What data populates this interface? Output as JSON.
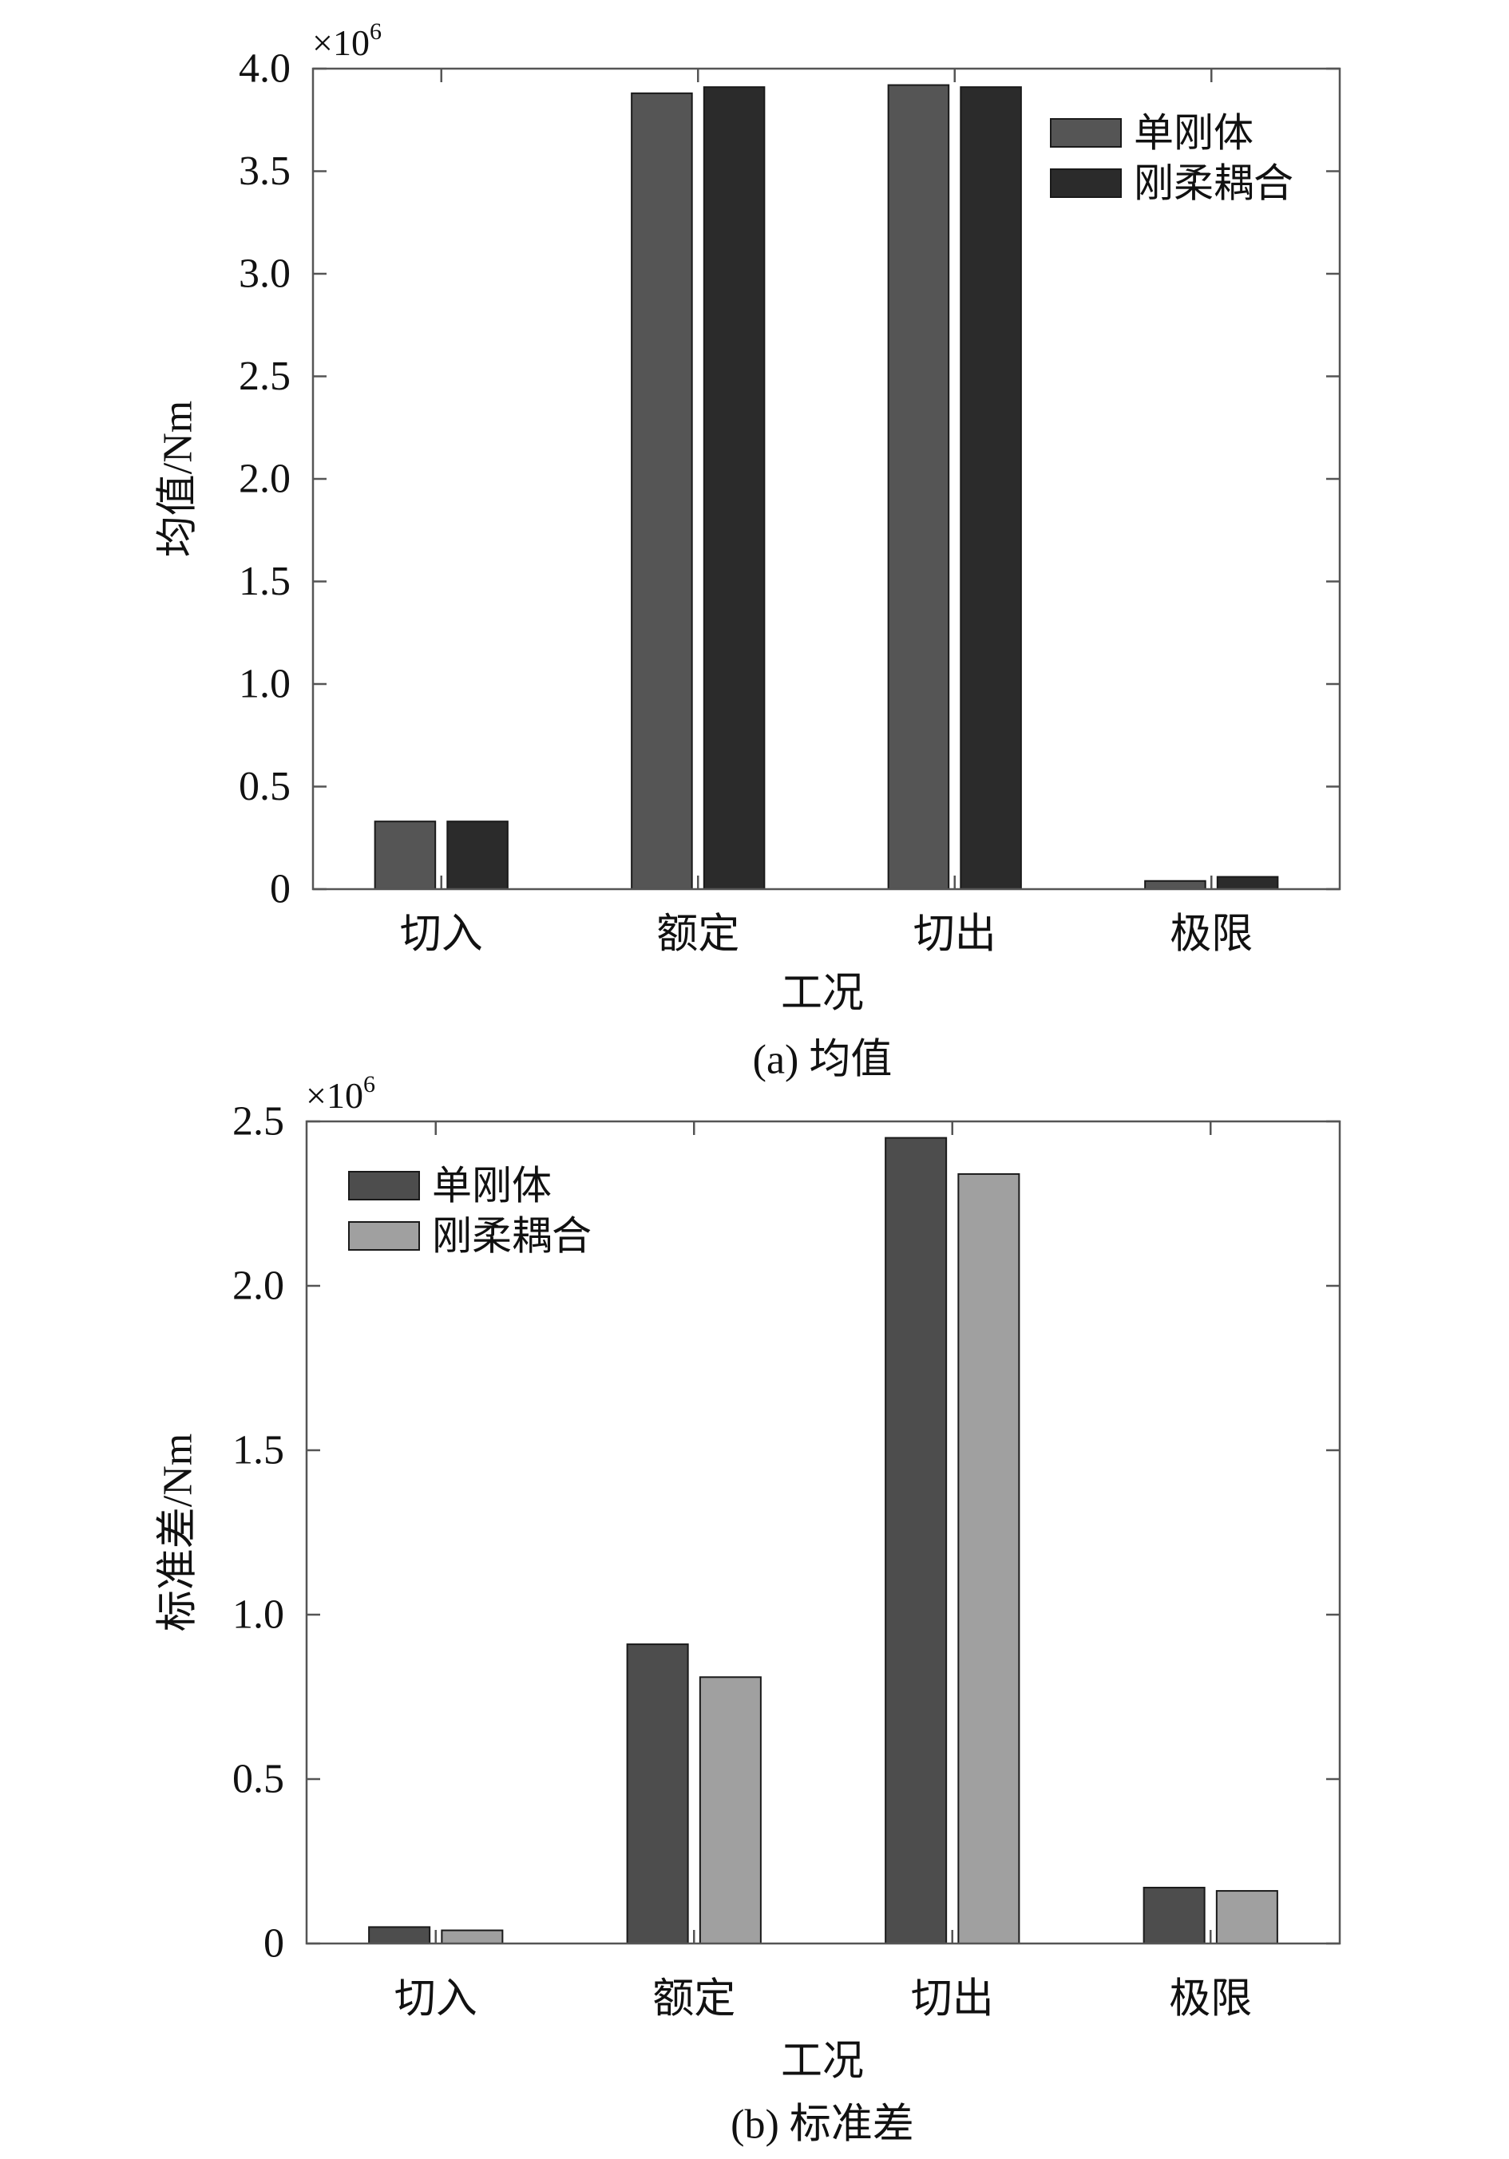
{
  "chart_data": [
    {
      "type": "bar",
      "caption": "(a) 均值",
      "xlabel": "工况",
      "ylabel": "均值/Nm",
      "y_multiplier": {
        "base": "×10",
        "exponent": "6"
      },
      "categories": [
        "切入",
        "额定",
        "切出",
        "极限"
      ],
      "series": [
        {
          "name": "单刚体",
          "values": [
            0.33,
            3.88,
            3.92,
            0.04
          ],
          "color": "#555555"
        },
        {
          "name": "刚柔耦合",
          "values": [
            0.33,
            3.91,
            3.91,
            0.06
          ],
          "color": "#2b2b2b"
        }
      ],
      "ylim": [
        0,
        4.0
      ],
      "yticks": [
        0,
        0.5,
        1.0,
        1.5,
        2.0,
        2.5,
        3.0,
        3.5,
        4.0
      ],
      "ytick_labels": [
        "0",
        "0.5",
        "1.0",
        "1.5",
        "2.0",
        "2.5",
        "3.0",
        "3.5",
        "4.0"
      ],
      "grid": false,
      "legend": "top-right"
    },
    {
      "type": "bar",
      "caption": "(b) 标准差",
      "xlabel": "工况",
      "ylabel": "标准差/Nm",
      "y_multiplier": {
        "base": "×10",
        "exponent": "6"
      },
      "categories": [
        "切入",
        "额定",
        "切出",
        "极限"
      ],
      "series": [
        {
          "name": "单刚体",
          "values": [
            0.05,
            0.91,
            2.45,
            0.17
          ],
          "color": "#4d4d4d"
        },
        {
          "name": "刚柔耦合",
          "values": [
            0.04,
            0.81,
            2.34,
            0.16
          ],
          "color": "#a0a0a0"
        }
      ],
      "ylim": [
        0,
        2.5
      ],
      "yticks": [
        0,
        0.5,
        1.0,
        1.5,
        2.0,
        2.5
      ],
      "ytick_labels": [
        "0",
        "0.5",
        "1.0",
        "1.5",
        "2.0",
        "2.5"
      ],
      "grid": false,
      "legend": "top-left"
    }
  ]
}
